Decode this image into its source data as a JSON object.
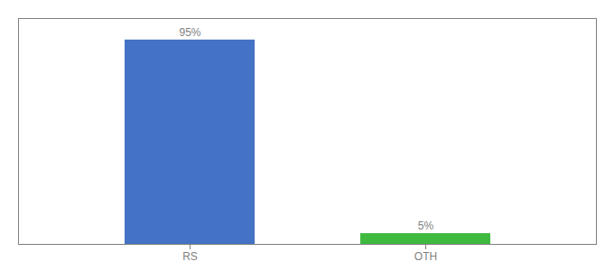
{
  "chart_data": {
    "type": "bar",
    "categories": [
      "RS",
      "OTH"
    ],
    "values": [
      95,
      5
    ],
    "value_labels": [
      "95%",
      "5%"
    ],
    "colors": [
      "#4472c4",
      "#3fba3f"
    ],
    "ylim": [
      0,
      105
    ],
    "tick_labels": "x",
    "data_labels": true
  }
}
